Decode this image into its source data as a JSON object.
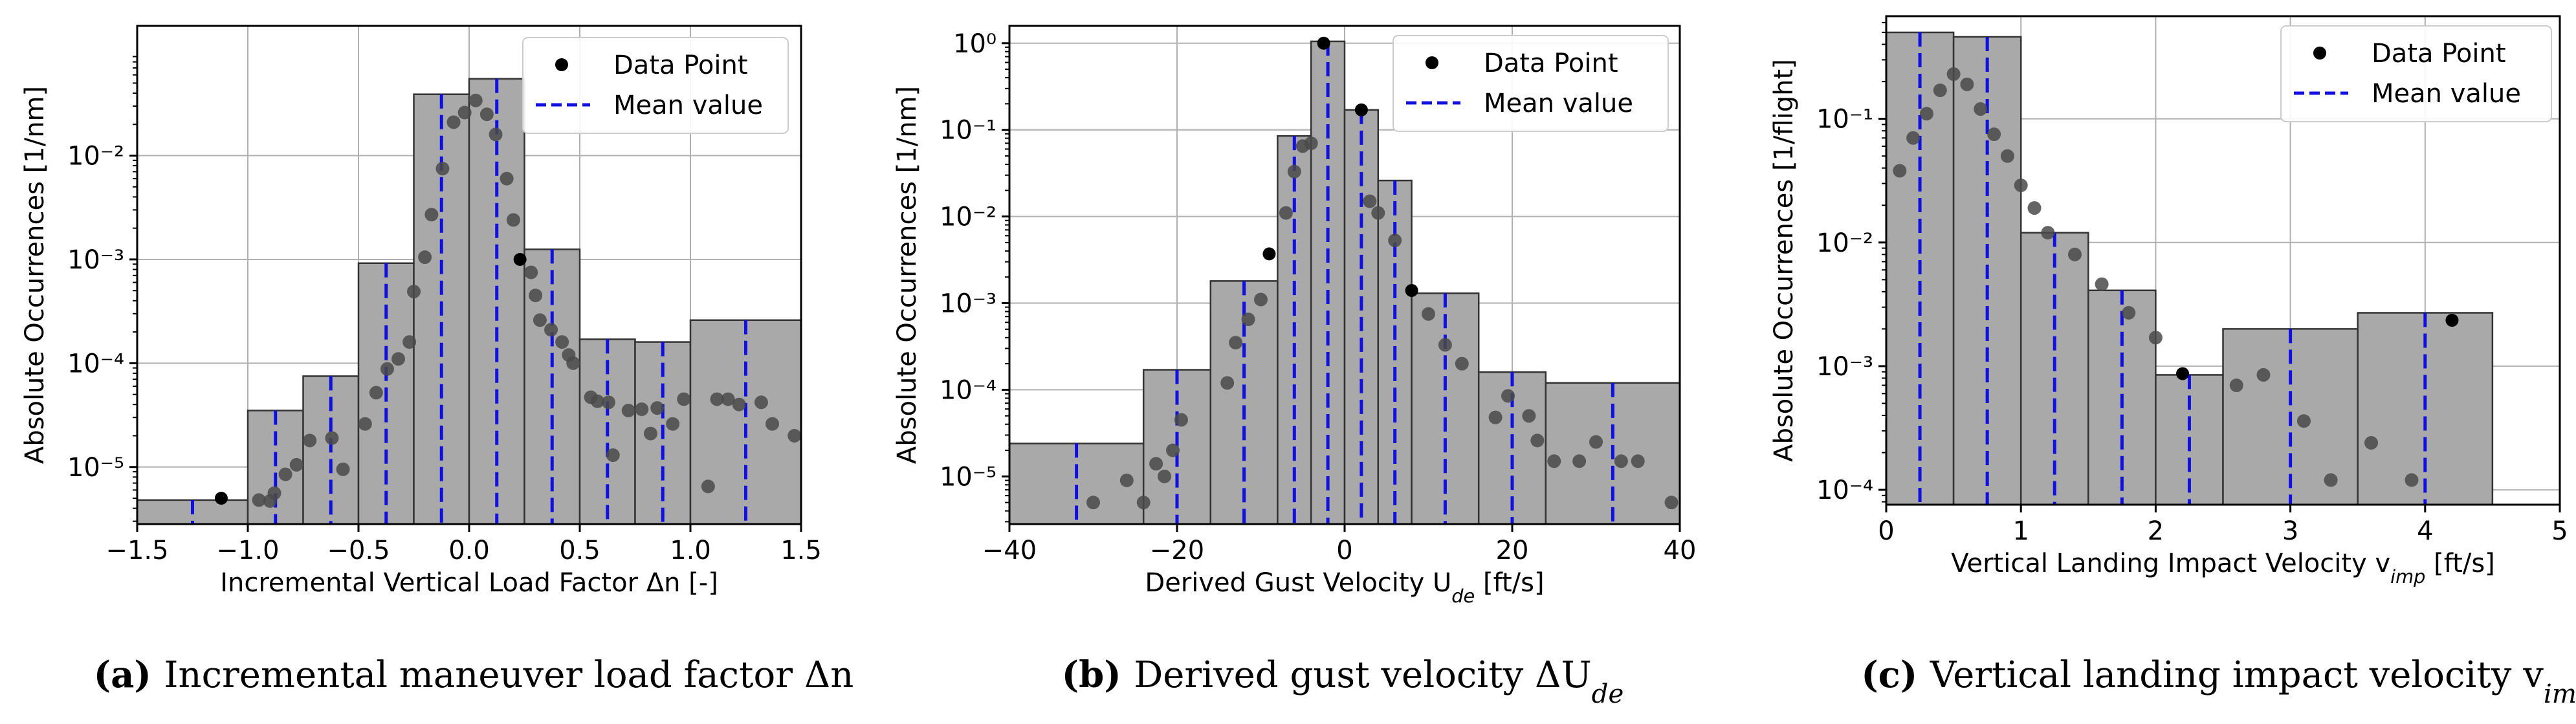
{
  "figure": {
    "legend": {
      "point_label": "Data Point",
      "mean_label": "Mean value"
    }
  },
  "chart_data": [
    {
      "type": "histogram-log",
      "tag": "(a)",
      "caption": "Incremental maneuver load factor Δn",
      "xlabel": "Incremental Vertical Load Factor Δn [-]",
      "ylabel": "Absolute Occurrences [1/nm]",
      "xlim": [
        -1.5,
        1.5
      ],
      "ylim_log10": [
        -5.55,
        -0.75
      ],
      "xticks": [
        -1.5,
        -1.0,
        -0.5,
        0.0,
        0.5,
        1.0,
        1.5
      ],
      "xtick_labels": [
        "−1.5",
        "−1.0",
        "−0.5",
        "0.0",
        "0.5",
        "1.0",
        "1.5"
      ],
      "yticks_log10": [
        -5,
        -4,
        -3,
        -2
      ],
      "ytick_labels": [
        "10⁻⁵",
        "10⁻⁴",
        "10⁻³",
        "10⁻²"
      ],
      "bins": [
        {
          "x0": -1.5,
          "x1": -1.0,
          "value": 4.8e-06,
          "mean": -1.25
        },
        {
          "x0": -1.0,
          "x1": -0.75,
          "value": 3.5e-05,
          "mean": -0.875
        },
        {
          "x0": -0.75,
          "x1": -0.5,
          "value": 7.5e-05,
          "mean": -0.625
        },
        {
          "x0": -0.5,
          "x1": -0.25,
          "value": 0.00092,
          "mean": -0.375
        },
        {
          "x0": -0.25,
          "x1": 0.0,
          "value": 0.039,
          "mean": -0.125
        },
        {
          "x0": 0.0,
          "x1": 0.25,
          "value": 0.055,
          "mean": 0.125
        },
        {
          "x0": 0.25,
          "x1": 0.5,
          "value": 0.00125,
          "mean": 0.375
        },
        {
          "x0": 0.5,
          "x1": 0.75,
          "value": 0.00017,
          "mean": 0.625
        },
        {
          "x0": 0.75,
          "x1": 1.0,
          "value": 0.00016,
          "mean": 0.875
        },
        {
          "x0": 1.0,
          "x1": 1.5,
          "value": 0.00026,
          "mean": 1.25
        }
      ],
      "points": [
        {
          "x": -1.12,
          "y": 5e-06,
          "highlight": true
        },
        {
          "x": -0.95,
          "y": 4.8e-06
        },
        {
          "x": -0.9,
          "y": 4.7e-06
        },
        {
          "x": -0.88,
          "y": 5.6e-06
        },
        {
          "x": -0.83,
          "y": 8.5e-06
        },
        {
          "x": -0.78,
          "y": 1.05e-05
        },
        {
          "x": -0.72,
          "y": 1.8e-05
        },
        {
          "x": -0.62,
          "y": 1.9e-05
        },
        {
          "x": -0.57,
          "y": 9.5e-06
        },
        {
          "x": -0.47,
          "y": 2.6e-05
        },
        {
          "x": -0.42,
          "y": 5.2e-05
        },
        {
          "x": -0.37,
          "y": 8.8e-05
        },
        {
          "x": -0.32,
          "y": 0.00011
        },
        {
          "x": -0.27,
          "y": 0.00016
        },
        {
          "x": -0.25,
          "y": 0.00049
        },
        {
          "x": -0.2,
          "y": 0.00105
        },
        {
          "x": -0.17,
          "y": 0.0027
        },
        {
          "x": -0.12,
          "y": 0.0075
        },
        {
          "x": -0.07,
          "y": 0.021
        },
        {
          "x": -0.02,
          "y": 0.026
        },
        {
          "x": 0.03,
          "y": 0.034
        },
        {
          "x": 0.08,
          "y": 0.025
        },
        {
          "x": 0.12,
          "y": 0.016
        },
        {
          "x": 0.17,
          "y": 0.006
        },
        {
          "x": 0.2,
          "y": 0.0024
        },
        {
          "x": 0.23,
          "y": 0.001,
          "highlight": true
        },
        {
          "x": 0.28,
          "y": 0.00075
        },
        {
          "x": 0.3,
          "y": 0.00045
        },
        {
          "x": 0.32,
          "y": 0.00026
        },
        {
          "x": 0.37,
          "y": 0.00021
        },
        {
          "x": 0.42,
          "y": 0.00016
        },
        {
          "x": 0.45,
          "y": 0.00012
        },
        {
          "x": 0.47,
          "y": 0.0001
        },
        {
          "x": 0.55,
          "y": 4.7e-05
        },
        {
          "x": 0.58,
          "y": 4.3e-05
        },
        {
          "x": 0.63,
          "y": 4.2e-05
        },
        {
          "x": 0.65,
          "y": 1.3e-05
        },
        {
          "x": 0.72,
          "y": 3.5e-05
        },
        {
          "x": 0.78,
          "y": 3.6e-05
        },
        {
          "x": 0.82,
          "y": 2.1e-05
        },
        {
          "x": 0.85,
          "y": 3.7e-05
        },
        {
          "x": 0.92,
          "y": 2.6e-05
        },
        {
          "x": 0.97,
          "y": 4.5e-05
        },
        {
          "x": 1.08,
          "y": 6.5e-06
        },
        {
          "x": 1.12,
          "y": 4.5e-05
        },
        {
          "x": 1.17,
          "y": 4.5e-05
        },
        {
          "x": 1.22,
          "y": 4e-05
        },
        {
          "x": 1.32,
          "y": 4.2e-05
        },
        {
          "x": 1.37,
          "y": 2.6e-05
        },
        {
          "x": 1.47,
          "y": 2e-05
        }
      ]
    },
    {
      "type": "histogram-log",
      "tag": "(b)",
      "caption": "Derived gust velocity ΔU_de",
      "xlabel": "Derived Gust Velocity U_de [ft/s]",
      "ylabel": "Absolute Occurrences [1/nm]",
      "xlim": [
        -40,
        40
      ],
      "ylim_log10": [
        -5.55,
        0.2
      ],
      "xticks": [
        -40,
        -20,
        0,
        20,
        40
      ],
      "xtick_labels": [
        "−40",
        "−20",
        "0",
        "20",
        "40"
      ],
      "yticks_log10": [
        -5,
        -4,
        -3,
        -2,
        -1,
        0
      ],
      "ytick_labels": [
        "10⁻⁵",
        "10⁻⁴",
        "10⁻³",
        "10⁻²",
        "10⁻¹",
        "10⁰"
      ],
      "bins": [
        {
          "x0": -40,
          "x1": -24,
          "value": 2.4e-05,
          "mean": -32
        },
        {
          "x0": -24,
          "x1": -16,
          "value": 0.00017,
          "mean": -20
        },
        {
          "x0": -16,
          "x1": -8,
          "value": 0.0018,
          "mean": -12
        },
        {
          "x0": -8,
          "x1": -4,
          "value": 0.085,
          "mean": -6
        },
        {
          "x0": -4,
          "x1": 0,
          "value": 1.05,
          "mean": -2
        },
        {
          "x0": 0,
          "x1": 4,
          "value": 0.17,
          "mean": 2
        },
        {
          "x0": 4,
          "x1": 8,
          "value": 0.026,
          "mean": 6
        },
        {
          "x0": 8,
          "x1": 16,
          "value": 0.0013,
          "mean": 12
        },
        {
          "x0": 16,
          "x1": 24,
          "value": 0.00016,
          "mean": 20
        },
        {
          "x0": 24,
          "x1": 40,
          "value": 0.00012,
          "mean": 32
        }
      ],
      "points": [
        {
          "x": -30,
          "y": 5e-06
        },
        {
          "x": -26,
          "y": 9e-06
        },
        {
          "x": -24,
          "y": 5e-06
        },
        {
          "x": -22.5,
          "y": 1.4e-05
        },
        {
          "x": -21.5,
          "y": 1e-05
        },
        {
          "x": -20.5,
          "y": 2e-05
        },
        {
          "x": -19.5,
          "y": 4.5e-05
        },
        {
          "x": -14,
          "y": 0.00012
        },
        {
          "x": -13,
          "y": 0.00035
        },
        {
          "x": -11.5,
          "y": 0.00065
        },
        {
          "x": -10,
          "y": 0.0011
        },
        {
          "x": -9,
          "y": 0.0037,
          "highlight": true
        },
        {
          "x": -7,
          "y": 0.011
        },
        {
          "x": -6,
          "y": 0.033
        },
        {
          "x": -5,
          "y": 0.065
        },
        {
          "x": -4,
          "y": 0.07
        },
        {
          "x": -2.5,
          "y": 1.0,
          "highlight": true
        },
        {
          "x": 2,
          "y": 0.17,
          "highlight": true
        },
        {
          "x": 3,
          "y": 0.015
        },
        {
          "x": 4,
          "y": 0.011
        },
        {
          "x": 6,
          "y": 0.0053
        },
        {
          "x": 8,
          "y": 0.0014,
          "highlight": true
        },
        {
          "x": 10,
          "y": 0.00075
        },
        {
          "x": 12,
          "y": 0.00033
        },
        {
          "x": 14,
          "y": 0.0002
        },
        {
          "x": 18,
          "y": 4.8e-05
        },
        {
          "x": 19.5,
          "y": 8.5e-05
        },
        {
          "x": 22,
          "y": 5e-05
        },
        {
          "x": 23,
          "y": 2.6e-05
        },
        {
          "x": 25,
          "y": 1.5e-05
        },
        {
          "x": 28,
          "y": 1.5e-05
        },
        {
          "x": 30,
          "y": 2.5e-05
        },
        {
          "x": 33,
          "y": 1.5e-05
        },
        {
          "x": 35,
          "y": 1.5e-05
        },
        {
          "x": 39,
          "y": 5e-06
        }
      ]
    },
    {
      "type": "histogram-log",
      "tag": "(c)",
      "caption": "Vertical landing impact velocity v_imp",
      "xlabel": "Vertical Landing Impact Velocity v_imp [ft/s]",
      "ylabel": "Absolute Occurrences [1/flight]",
      "xlim": [
        0,
        5
      ],
      "ylim_log10": [
        -4.12,
        -0.17
      ],
      "xticks": [
        0,
        1,
        2,
        3,
        4,
        5
      ],
      "xtick_labels": [
        "0",
        "1",
        "2",
        "3",
        "4",
        "5"
      ],
      "yticks_log10": [
        -4,
        -3,
        -2,
        -1
      ],
      "ytick_labels": [
        "10⁻⁴",
        "10⁻³",
        "10⁻²",
        "10⁻¹"
      ],
      "bins": [
        {
          "x0": 0.0,
          "x1": 0.5,
          "value": 0.5,
          "mean": 0.25
        },
        {
          "x0": 0.5,
          "x1": 1.0,
          "value": 0.46,
          "mean": 0.75
        },
        {
          "x0": 1.0,
          "x1": 1.5,
          "value": 0.012,
          "mean": 1.25
        },
        {
          "x0": 1.5,
          "x1": 2.0,
          "value": 0.0041,
          "mean": 1.75
        },
        {
          "x0": 2.0,
          "x1": 2.5,
          "value": 0.00085,
          "mean": 2.25
        },
        {
          "x0": 2.5,
          "x1": 3.5,
          "value": 0.002,
          "mean": 3.0
        },
        {
          "x0": 3.5,
          "x1": 4.5,
          "value": 0.0027,
          "mean": 4.0
        }
      ],
      "points": [
        {
          "x": 0.1,
          "y": 0.038
        },
        {
          "x": 0.2,
          "y": 0.07
        },
        {
          "x": 0.3,
          "y": 0.11
        },
        {
          "x": 0.4,
          "y": 0.17
        },
        {
          "x": 0.5,
          "y": 0.23
        },
        {
          "x": 0.6,
          "y": 0.19
        },
        {
          "x": 0.7,
          "y": 0.12
        },
        {
          "x": 0.8,
          "y": 0.075
        },
        {
          "x": 0.9,
          "y": 0.05
        },
        {
          "x": 1.0,
          "y": 0.029
        },
        {
          "x": 1.1,
          "y": 0.019
        },
        {
          "x": 1.2,
          "y": 0.012
        },
        {
          "x": 1.4,
          "y": 0.008
        },
        {
          "x": 1.6,
          "y": 0.0046
        },
        {
          "x": 1.8,
          "y": 0.0027
        },
        {
          "x": 2.0,
          "y": 0.0017
        },
        {
          "x": 2.2,
          "y": 0.00087,
          "highlight": true
        },
        {
          "x": 2.6,
          "y": 0.0007
        },
        {
          "x": 2.8,
          "y": 0.00085
        },
        {
          "x": 3.1,
          "y": 0.00036
        },
        {
          "x": 3.3,
          "y": 0.00012
        },
        {
          "x": 3.6,
          "y": 0.00024
        },
        {
          "x": 3.9,
          "y": 0.00012
        },
        {
          "x": 4.2,
          "y": 0.00235,
          "highlight": true
        }
      ]
    }
  ]
}
